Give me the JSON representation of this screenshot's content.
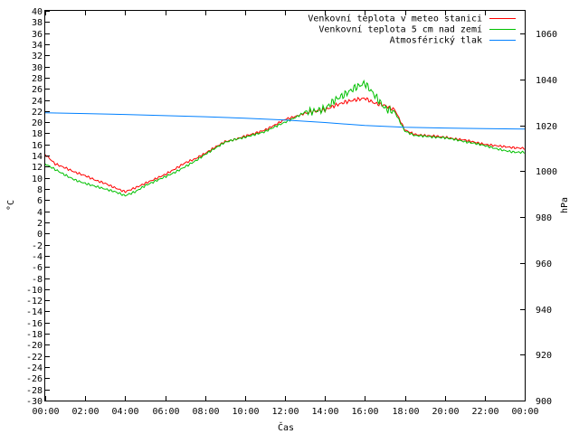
{
  "chart_data": {
    "type": "line",
    "xlabel": "Čas",
    "ylabel": "°C",
    "y2label": "hPa",
    "xlim": [
      0,
      24
    ],
    "ylim": [
      -30,
      40
    ],
    "y2lim": [
      900,
      1070
    ],
    "x_ticks": [
      "00:00",
      "02:00",
      "04:00",
      "06:00",
      "08:00",
      "10:00",
      "12:00",
      "14:00",
      "16:00",
      "18:00",
      "20:00",
      "22:00",
      "00:00"
    ],
    "y_ticks": [
      40,
      38,
      36,
      34,
      32,
      30,
      28,
      26,
      24,
      22,
      20,
      18,
      16,
      14,
      12,
      10,
      8,
      6,
      4,
      2,
      0,
      -2,
      -4,
      -6,
      -8,
      -10,
      -12,
      -14,
      -16,
      -18,
      -20,
      -22,
      -24,
      -26,
      -28,
      -30
    ],
    "y2_ticks": [
      1060,
      1040,
      1020,
      1000,
      980,
      960,
      940,
      920,
      900
    ],
    "grid": false,
    "legend_position": "top-right",
    "series": [
      {
        "name": "Venkovní teplota v meteo stanici",
        "color": "#ff0000",
        "axis": "left",
        "x": [
          0,
          0.5,
          1,
          1.5,
          2,
          2.5,
          3,
          3.5,
          4,
          4.5,
          5,
          5.5,
          6,
          6.5,
          7,
          7.5,
          8,
          8.5,
          9,
          9.5,
          10,
          10.5,
          11,
          11.5,
          12,
          12.5,
          13,
          13.5,
          14,
          14.5,
          15,
          15.5,
          16,
          16.5,
          17,
          17.5,
          18,
          18.5,
          19,
          19.5,
          20,
          20.5,
          21,
          21.5,
          22,
          22.5,
          23,
          23.5,
          24
        ],
        "y": [
          14.2,
          12.5,
          11.8,
          11.0,
          10.4,
          9.6,
          9.0,
          8.2,
          7.5,
          8.2,
          9.0,
          9.8,
          10.6,
          11.6,
          12.7,
          13.4,
          14.4,
          15.5,
          16.5,
          16.9,
          17.5,
          18.0,
          18.6,
          19.5,
          20.5,
          21.0,
          21.6,
          22.0,
          22.2,
          23.0,
          23.6,
          24.0,
          24.3,
          23.4,
          23.0,
          22.2,
          18.6,
          17.8,
          17.6,
          17.5,
          17.3,
          17.0,
          16.8,
          16.4,
          16.0,
          15.8,
          15.6,
          15.4,
          15.3
        ]
      },
      {
        "name": "Venkovní teplota 5 cm nad zemí",
        "color": "#00c000",
        "axis": "left",
        "x": [
          0,
          0.5,
          1,
          1.5,
          2,
          2.5,
          3,
          3.5,
          4,
          4.5,
          5,
          5.5,
          6,
          6.5,
          7,
          7.5,
          8,
          8.5,
          9,
          9.5,
          10,
          10.5,
          11,
          11.5,
          12,
          12.5,
          13,
          13.5,
          14,
          14.5,
          15,
          15.5,
          16,
          16.5,
          17,
          17.5,
          18,
          18.5,
          19,
          19.5,
          20,
          20.5,
          21,
          21.5,
          22,
          22.5,
          23,
          23.5,
          24
        ],
        "y": [
          12.5,
          11.5,
          10.5,
          9.6,
          9.0,
          8.5,
          8.0,
          7.5,
          6.8,
          7.5,
          8.6,
          9.4,
          10.2,
          11.0,
          12.0,
          13.0,
          14.2,
          15.3,
          16.4,
          16.9,
          17.3,
          17.8,
          18.3,
          19.2,
          20.0,
          20.8,
          21.8,
          22.0,
          22.4,
          24.0,
          25.0,
          26.2,
          27.0,
          24.8,
          22.5,
          21.8,
          18.4,
          17.6,
          17.5,
          17.3,
          17.2,
          16.9,
          16.5,
          16.2,
          15.8,
          15.3,
          14.9,
          14.6,
          14.6
        ]
      },
      {
        "name": "Atmosférický tlak",
        "color": "#0080ff",
        "axis": "right",
        "x": [
          0,
          2,
          4,
          6,
          8,
          10,
          12,
          14,
          16,
          18,
          20,
          22,
          24
        ],
        "y": [
          1025.5,
          1025.2,
          1024.8,
          1024.3,
          1023.8,
          1023.2,
          1022.4,
          1021.3,
          1020.0,
          1019.2,
          1018.9,
          1018.6,
          1018.4
        ]
      }
    ]
  }
}
